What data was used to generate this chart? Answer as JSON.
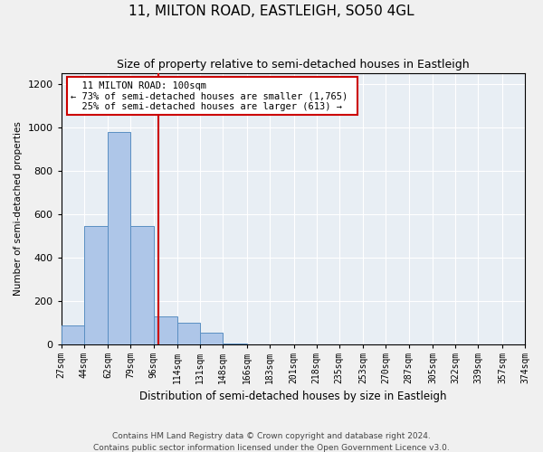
{
  "title": "11, MILTON ROAD, EASTLEIGH, SO50 4GL",
  "subtitle": "Size of property relative to semi-detached houses in Eastleigh",
  "xlabel": "Distribution of semi-detached houses by size in Eastleigh",
  "ylabel": "Number of semi-detached properties",
  "footer_line1": "Contains HM Land Registry data © Crown copyright and database right 2024.",
  "footer_line2": "Contains public sector information licensed under the Open Government Licence v3.0.",
  "bin_labels": [
    "27sqm",
    "44sqm",
    "62sqm",
    "79sqm",
    "96sqm",
    "114sqm",
    "131sqm",
    "148sqm",
    "166sqm",
    "183sqm",
    "201sqm",
    "218sqm",
    "235sqm",
    "253sqm",
    "270sqm",
    "287sqm",
    "305sqm",
    "322sqm",
    "339sqm",
    "357sqm",
    "374sqm"
  ],
  "bin_edges": [
    27,
    44,
    62,
    79,
    96,
    114,
    131,
    148,
    166,
    183,
    201,
    218,
    235,
    253,
    270,
    287,
    305,
    322,
    339,
    357,
    374
  ],
  "bar_heights": [
    90,
    545,
    980,
    545,
    130,
    100,
    55,
    5,
    0,
    0,
    0,
    0,
    0,
    0,
    0,
    0,
    0,
    0,
    0,
    0
  ],
  "bar_color": "#aec6e8",
  "bar_edge_color": "#5a8fc2",
  "property_sqm": 100,
  "annotation_title": "11 MILTON ROAD: 100sqm",
  "annotation_line1": "← 73% of semi-detached houses are smaller (1,765)",
  "annotation_line2": "25% of semi-detached houses are larger (613) →",
  "annotation_box_color": "#ffffff",
  "annotation_box_edge_color": "#cc0000",
  "vline_color": "#cc0000",
  "ylim": [
    0,
    1250
  ],
  "background_color": "#e8eef4",
  "grid_color": "#ffffff",
  "title_fontsize": 11,
  "subtitle_fontsize": 9
}
